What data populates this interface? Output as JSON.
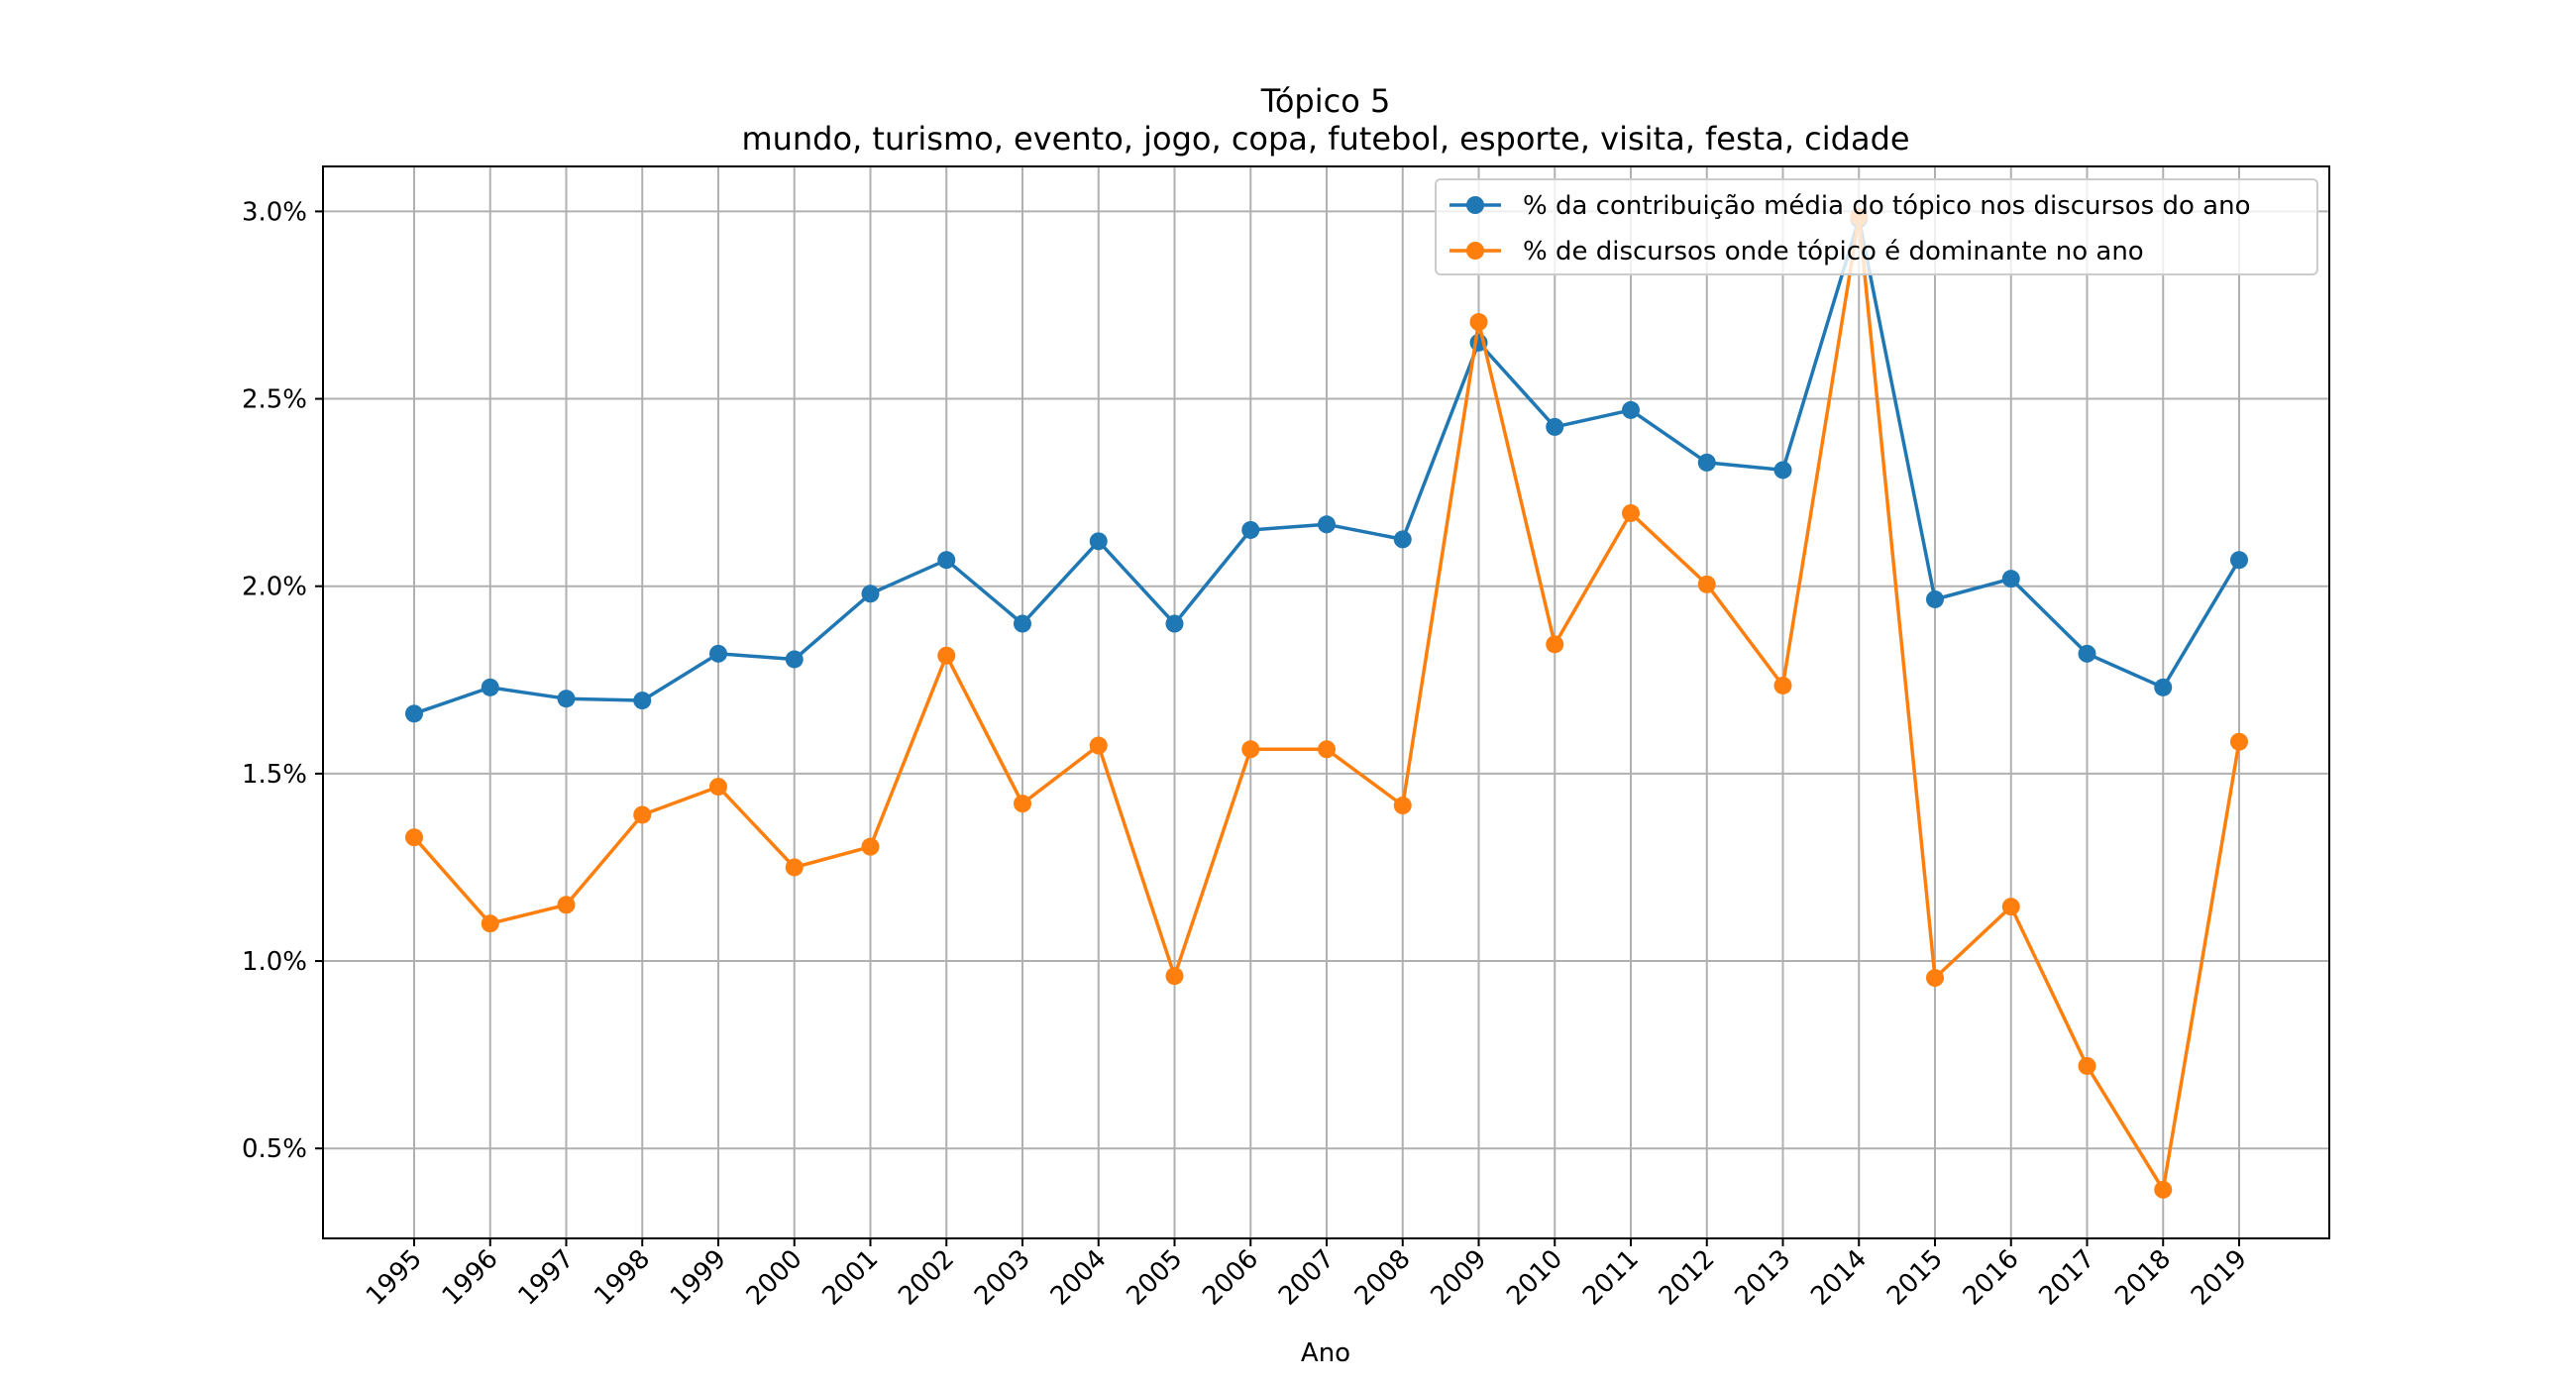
{
  "chart_data": {
    "type": "line",
    "title": "Tópico 5",
    "subtitle": "mundo, turismo, evento, jogo, copa, futebol, esporte, visita, festa, cidade",
    "xlabel": "Ano",
    "ylabel": "",
    "categories": [
      "1995",
      "1996",
      "1997",
      "1998",
      "1999",
      "2000",
      "2001",
      "2002",
      "2003",
      "2004",
      "2005",
      "2006",
      "2007",
      "2008",
      "2009",
      "2010",
      "2011",
      "2012",
      "2013",
      "2014",
      "2015",
      "2016",
      "2017",
      "2018",
      "2019"
    ],
    "y_ticks": [
      {
        "value": 0.5,
        "label": "0.5%"
      },
      {
        "value": 1.0,
        "label": "1.0%"
      },
      {
        "value": 1.5,
        "label": "1.5%"
      },
      {
        "value": 2.0,
        "label": "2.0%"
      },
      {
        "value": 2.5,
        "label": "2.5%"
      },
      {
        "value": 3.0,
        "label": "3.0%"
      }
    ],
    "ylim": [
      0.26,
      3.12
    ],
    "grid": true,
    "legend_position": "top-right",
    "series": [
      {
        "name": "% da contribuição média do tópico nos discursos do ano",
        "color": "#1f77b4",
        "values": [
          1.66,
          1.73,
          1.7,
          1.695,
          1.82,
          1.805,
          1.98,
          2.07,
          1.9,
          2.12,
          1.9,
          2.15,
          2.165,
          2.125,
          2.65,
          2.425,
          2.47,
          2.33,
          2.31,
          2.98,
          1.965,
          2.02,
          1.82,
          1.73,
          2.07
        ]
      },
      {
        "name": "% de discursos onde tópico é dominante no ano",
        "color": "#ff7f0e",
        "values": [
          1.33,
          1.1,
          1.15,
          1.39,
          1.465,
          1.25,
          1.305,
          1.815,
          1.42,
          1.575,
          0.96,
          1.565,
          1.565,
          1.415,
          2.705,
          1.845,
          2.195,
          2.005,
          1.735,
          2.985,
          0.955,
          1.145,
          0.72,
          0.39,
          1.585
        ]
      }
    ]
  }
}
